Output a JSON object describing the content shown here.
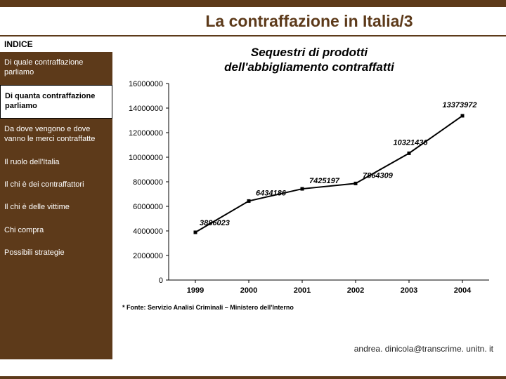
{
  "title": "La contraffazione in Italia/3",
  "sidebar": {
    "heading": "INDICE",
    "items": [
      {
        "label": "Di quale contraffazione parliamo",
        "current": false
      },
      {
        "label": "Di quanta contraffazione parliamo",
        "current": true
      },
      {
        "label": "Da dove vengono e dove vanno le merci contraffatte",
        "current": false
      },
      {
        "label": "Il ruolo dell'Italia",
        "current": false
      },
      {
        "label": "Il chi è dei contraffattori",
        "current": false
      },
      {
        "label": "Il chi è delle vittime",
        "current": false
      },
      {
        "label": "Chi compra",
        "current": false
      },
      {
        "label": "Possibili strategie",
        "current": false
      }
    ]
  },
  "chart": {
    "type": "line",
    "title_line1": "Sequestri di prodotti",
    "title_line2": "dell'abbigliamento  contraffatti",
    "categories": [
      "1999",
      "2000",
      "2001",
      "2002",
      "2003",
      "2004"
    ],
    "values": [
      3886023,
      6434186,
      7425197,
      7864309,
      10321436,
      13373972
    ],
    "ylim": [
      0,
      16000000
    ],
    "ytick_step": 2000000,
    "line_color": "#000000",
    "marker_color": "#000000",
    "grid_color": "#000000",
    "background_color": "#ffffff",
    "axis_fontsize": 11,
    "label_fontsize": 11,
    "value_fontsize": 11,
    "value_fontweight": "bold",
    "title_fontsize": 17,
    "line_width": 2,
    "marker_size": 5
  },
  "source": "* Fonte: Servizio Analisi Criminali – Ministero dell'Interno",
  "footer_email": "andrea. dinicola@transcrime. unitn. it",
  "colors": {
    "brand": "#5d3a1a",
    "text": "#000000",
    "bg": "#ffffff"
  }
}
